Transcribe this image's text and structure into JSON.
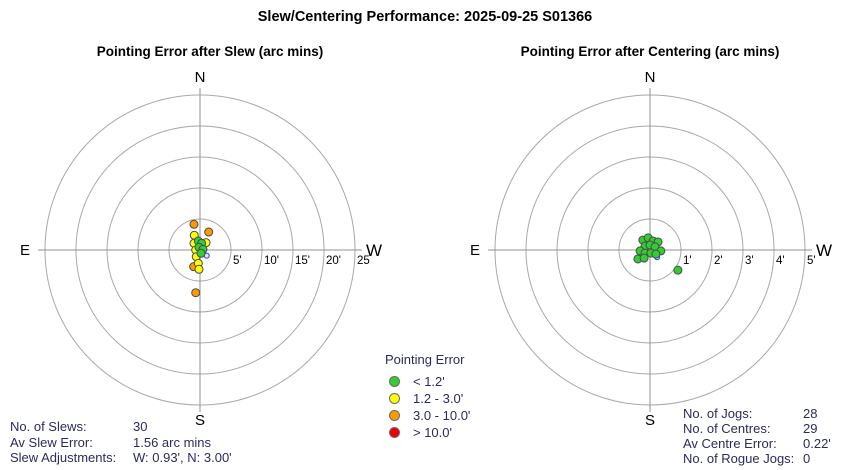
{
  "title": "Slew/Centering Performance: 2025-09-25 S01366",
  "colors": {
    "green": "#33cc33",
    "yellow": "#ffff00",
    "orange": "#ff9900",
    "red": "#ee0000",
    "blue": "#3355ee",
    "ring": "#a9a9a9",
    "axis": "#909090",
    "stats_text": "#2b2b5e"
  },
  "legend": {
    "title": "Pointing Error",
    "items": [
      {
        "color_key": "green",
        "label": "< 1.2'"
      },
      {
        "color_key": "yellow",
        "label": "1.2 - 3.0'"
      },
      {
        "color_key": "orange",
        "label": "3.0 - 10.0'"
      },
      {
        "color_key": "red",
        "label": "> 10.0'"
      }
    ]
  },
  "stats_left": {
    "rows": [
      {
        "label": "No. of Slews:",
        "value": "30"
      },
      {
        "label": "Av Slew Error:",
        "value": "1.56 arc mins"
      },
      {
        "label": "Slew Adjustments:",
        "value": "W: 0.93', N: 3.00'"
      }
    ]
  },
  "stats_right": {
    "rows": [
      {
        "label": "No. of Jogs:",
        "value": "28"
      },
      {
        "label": "No. of Centres:",
        "value": "29"
      },
      {
        "label": "Av Centre Error:",
        "value": "0.22'"
      },
      {
        "label": "No. of Rogue Jogs:",
        "value": "0"
      }
    ]
  },
  "chart_data": [
    {
      "type": "scatter",
      "projection": "polar-compass",
      "title": "Pointing Error after Slew (arc mins)",
      "units": "arc mins",
      "compass_labels": {
        "n": "N",
        "s": "S",
        "e": "E",
        "w": "W"
      },
      "rings": 5,
      "ring_step_arcmin": 5,
      "max_arcmin": 25,
      "ring_tick_labels": [
        "5'",
        "10'",
        "15'",
        "20'",
        "25"
      ],
      "points": [
        {
          "w": -0.97,
          "n": 4.15,
          "c": "orange"
        },
        {
          "w": 1.4,
          "n": 2.9,
          "c": "orange"
        },
        {
          "w": -1.02,
          "n": -2.69,
          "c": "orange"
        },
        {
          "w": -0.69,
          "n": -6.89,
          "c": "orange"
        },
        {
          "w": -0.92,
          "n": 2.37,
          "c": "yellow"
        },
        {
          "w": 0.97,
          "n": 1.18,
          "c": "yellow"
        },
        {
          "w": -0.97,
          "n": 1.08,
          "c": "yellow"
        },
        {
          "w": -0.69,
          "n": 0.0,
          "c": "yellow"
        },
        {
          "w": -0.6,
          "n": -1.08,
          "c": "yellow"
        },
        {
          "w": -0.27,
          "n": -2.15,
          "c": "yellow"
        },
        {
          "w": -0.16,
          "n": -3.11,
          "c": "yellow"
        },
        {
          "w": 1.08,
          "n": -0.92,
          "c": "blue"
        },
        {
          "w": -0.27,
          "n": 1.45,
          "c": "green"
        },
        {
          "w": 0.27,
          "n": 1.08,
          "c": "green"
        },
        {
          "w": -0.16,
          "n": 0.44,
          "c": "green"
        },
        {
          "w": 0.48,
          "n": 0.11,
          "c": "green"
        },
        {
          "w": 0.16,
          "n": -0.53,
          "c": "green"
        }
      ]
    },
    {
      "type": "scatter",
      "projection": "polar-compass",
      "title": "Pointing Error after Centering (arc mins)",
      "units": "arc mins",
      "compass_labels": {
        "n": "N",
        "s": "S",
        "e": "E",
        "w": "W"
      },
      "rings": 5,
      "ring_step_arcmin": 1,
      "max_arcmin": 5,
      "ring_tick_labels": [
        "1'",
        "2'",
        "3'",
        "4'",
        "5'"
      ],
      "points": [
        {
          "w": 0.23,
          "n": -0.23,
          "c": "blue"
        },
        {
          "w": -0.23,
          "n": 0.32,
          "c": "green"
        },
        {
          "w": -0.06,
          "n": 0.39,
          "c": "green"
        },
        {
          "w": 0.1,
          "n": 0.29,
          "c": "green"
        },
        {
          "w": 0.26,
          "n": 0.26,
          "c": "green"
        },
        {
          "w": -0.16,
          "n": 0.13,
          "c": "green"
        },
        {
          "w": 0.0,
          "n": 0.16,
          "c": "green"
        },
        {
          "w": 0.16,
          "n": 0.1,
          "c": "green"
        },
        {
          "w": 0.35,
          "n": -0.03,
          "c": "green"
        },
        {
          "w": -0.32,
          "n": -0.03,
          "c": "green"
        },
        {
          "w": -0.16,
          "n": -0.1,
          "c": "green"
        },
        {
          "w": 0.03,
          "n": -0.1,
          "c": "green"
        },
        {
          "w": 0.19,
          "n": -0.13,
          "c": "green"
        },
        {
          "w": -0.39,
          "n": -0.29,
          "c": "green"
        },
        {
          "w": -0.19,
          "n": -0.26,
          "c": "green"
        },
        {
          "w": 0.9,
          "n": -0.65,
          "c": "green"
        }
      ]
    }
  ]
}
